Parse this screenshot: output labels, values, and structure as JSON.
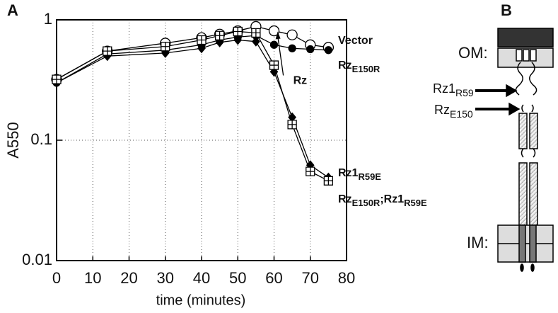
{
  "chart_data": {
    "type": "line",
    "panel_label": "A",
    "x_label": "time (minutes)",
    "y_label": "A550",
    "log_y": true,
    "grid": true,
    "xlim": [
      0,
      80
    ],
    "ylim": [
      0.01,
      1
    ],
    "xticks": [
      0,
      10,
      20,
      30,
      40,
      50,
      60,
      70,
      80
    ],
    "yticks": [
      0.01,
      0.1,
      1
    ],
    "x": [
      0,
      14,
      30,
      40,
      45,
      50,
      55,
      60,
      65,
      70,
      75
    ],
    "series": [
      {
        "name_parts": [
          "Vector"
        ],
        "marker": "circle-open",
        "color": "#000000",
        "values": [
          0.32,
          0.55,
          0.64,
          0.71,
          0.76,
          0.81,
          0.88,
          0.81,
          0.75,
          0.62,
          0.59
        ]
      },
      {
        "name_parts": [
          "Rz",
          "E150R"
        ],
        "marker": "circle-filled",
        "color": "#000000",
        "values": [
          0.3,
          0.52,
          0.56,
          0.62,
          0.68,
          0.72,
          0.74,
          0.62,
          0.58,
          0.57,
          0.56
        ]
      },
      {
        "name_parts": [
          "Rz1",
          "R59E"
        ],
        "marker": "diamond-filled",
        "color": "#000000",
        "values": [
          0.3,
          0.5,
          0.53,
          0.58,
          0.65,
          0.68,
          0.66,
          0.37,
          0.155,
          0.062,
          0.049
        ]
      },
      {
        "name_parts": [
          "Rz",
          "E150R",
          ";Rz1",
          "R59E"
        ],
        "marker": "square-cross",
        "color": "#000000",
        "values": [
          0.32,
          0.55,
          0.6,
          0.68,
          0.74,
          0.8,
          0.78,
          0.42,
          0.135,
          0.055,
          0.046
        ]
      }
    ],
    "annotation": {
      "text": "Rz",
      "x": 61,
      "y": 0.8
    }
  },
  "diagram": {
    "panel_label": "B",
    "outer_membrane": "OM:",
    "inner_membrane": "IM:",
    "rz1_site": [
      "Rz1",
      "R59"
    ],
    "rz_site": [
      "Rz",
      "E150"
    ]
  }
}
